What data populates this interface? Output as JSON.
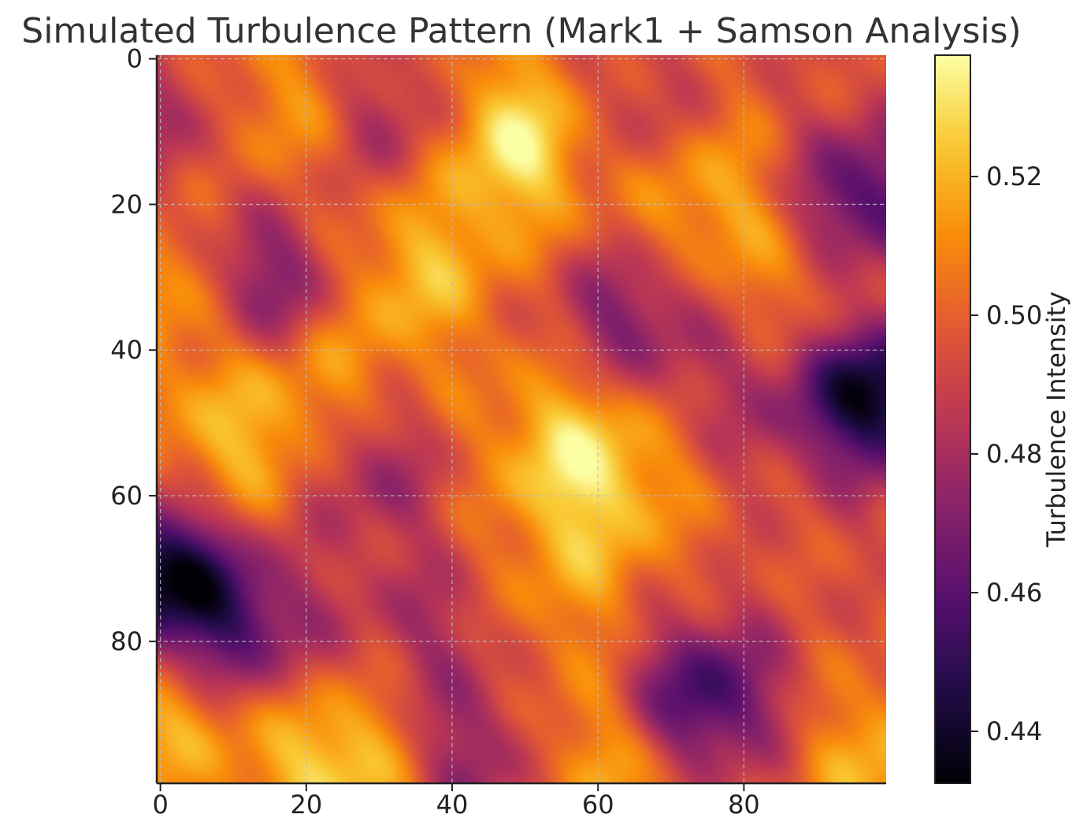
{
  "chart_data": {
    "type": "heatmap",
    "title": "Simulated Turbulence Pattern (Mark1 + Samson Analysis)",
    "xlabel": "",
    "ylabel": "",
    "grid_size": [
      100,
      100
    ],
    "x_range": [
      0,
      99
    ],
    "y_range": [
      0,
      99
    ],
    "y_axis_inverted": true,
    "x_ticks": [
      "0",
      "20",
      "40",
      "60",
      "80"
    ],
    "y_ticks": [
      "0",
      "20",
      "40",
      "60",
      "80"
    ],
    "x_tick_values": [
      0,
      20,
      40,
      60,
      80
    ],
    "y_tick_values": [
      0,
      20,
      40,
      60,
      80
    ],
    "grid": true,
    "colormap": "inferno",
    "colorbar": {
      "label": "Turbulence Intensity",
      "range": [
        0.4325,
        0.5375
      ],
      "ticks": [
        "0.44",
        "0.46",
        "0.48",
        "0.50",
        "0.52"
      ],
      "tick_values": [
        0.44,
        0.46,
        0.48,
        0.5,
        0.52
      ]
    },
    "base_value": 0.496,
    "features": [
      {
        "x": 49,
        "y": 11,
        "value": 0.537,
        "kind": "peak"
      },
      {
        "x": 14,
        "y": 7,
        "value": 0.518,
        "kind": "peak"
      },
      {
        "x": 35,
        "y": 29,
        "value": 0.52,
        "kind": "peak"
      },
      {
        "x": 75,
        "y": 19,
        "value": 0.519,
        "kind": "peak"
      },
      {
        "x": 91,
        "y": 30,
        "value": 0.514,
        "kind": "peak"
      },
      {
        "x": 0,
        "y": 32,
        "value": 0.518,
        "kind": "peak"
      },
      {
        "x": 10,
        "y": 54,
        "value": 0.519,
        "kind": "peak"
      },
      {
        "x": 22,
        "y": 44,
        "value": 0.514,
        "kind": "peak"
      },
      {
        "x": 56,
        "y": 52,
        "value": 0.521,
        "kind": "peak"
      },
      {
        "x": 61,
        "y": 60,
        "value": 0.514,
        "kind": "peak"
      },
      {
        "x": 1,
        "y": 90,
        "value": 0.521,
        "kind": "peak"
      },
      {
        "x": 25,
        "y": 97,
        "value": 0.53,
        "kind": "peak"
      },
      {
        "x": 62,
        "y": 96,
        "value": 0.52,
        "kind": "peak"
      },
      {
        "x": 99,
        "y": 97,
        "value": 0.52,
        "kind": "peak"
      },
      {
        "x": 55,
        "y": 74,
        "value": 0.509,
        "kind": "peak"
      },
      {
        "x": 96,
        "y": 20,
        "value": 0.45,
        "kind": "valley"
      },
      {
        "x": 98,
        "y": 46,
        "value": 0.433,
        "kind": "valley"
      },
      {
        "x": 0,
        "y": 71,
        "value": 0.436,
        "kind": "valley"
      },
      {
        "x": 74,
        "y": 88,
        "value": 0.448,
        "kind": "valley"
      },
      {
        "x": 15,
        "y": 31,
        "value": 0.462,
        "kind": "valley"
      },
      {
        "x": 33,
        "y": 9,
        "value": 0.475,
        "kind": "valley"
      },
      {
        "x": 64,
        "y": 36,
        "value": 0.468,
        "kind": "valley"
      },
      {
        "x": 3,
        "y": 8,
        "value": 0.474,
        "kind": "valley"
      },
      {
        "x": 11,
        "y": 79,
        "value": 0.462,
        "kind": "valley"
      },
      {
        "x": 28,
        "y": 56,
        "value": 0.474,
        "kind": "valley"
      },
      {
        "x": 42,
        "y": 96,
        "value": 0.47,
        "kind": "valley"
      },
      {
        "x": 63,
        "y": 9,
        "value": 0.478,
        "kind": "valley"
      },
      {
        "x": 37,
        "y": 78,
        "value": 0.48,
        "kind": "valley"
      },
      {
        "x": 80,
        "y": 47,
        "value": 0.485,
        "kind": "valley"
      }
    ]
  }
}
